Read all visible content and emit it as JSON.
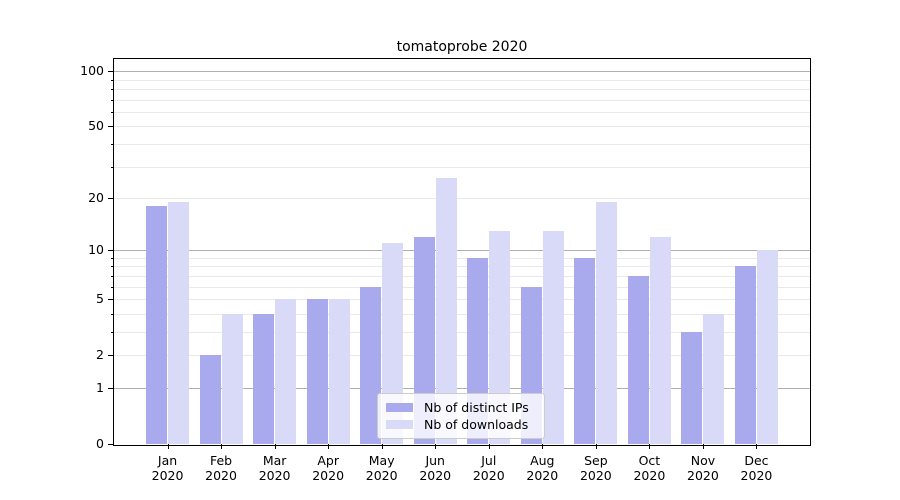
{
  "title": "tomatoprobe 2020",
  "chart_data": {
    "type": "bar",
    "title": "tomatoprobe 2020",
    "categories": [
      "Jan",
      "Feb",
      "Mar",
      "Apr",
      "May",
      "Jun",
      "Jul",
      "Aug",
      "Sep",
      "Oct",
      "Nov",
      "Dec"
    ],
    "category_year": "2020",
    "series": [
      {
        "name": "Nb of distinct IPs",
        "color": "#a9a9ee",
        "values": [
          18,
          2,
          4,
          5,
          6,
          12,
          9,
          6,
          9,
          7,
          3,
          8
        ]
      },
      {
        "name": "Nb of downloads",
        "color": "#d9d9f8",
        "values": [
          19,
          4,
          5,
          5,
          11,
          26,
          13,
          13,
          19,
          12,
          4,
          10
        ]
      }
    ],
    "xlabel": "",
    "ylabel": "",
    "yscale": "log1p",
    "ylim": [
      0,
      116.3
    ],
    "ytick_values": [
      0,
      1,
      2,
      5,
      10,
      20,
      50,
      100
    ],
    "ytick_labels": [
      "0",
      "1",
      "2",
      "5",
      "10",
      "20",
      "50",
      "100"
    ],
    "ytick_major": [
      1,
      10,
      100
    ],
    "ytick_minor": [
      2,
      3,
      4,
      5,
      6,
      7,
      8,
      9,
      20,
      30,
      40,
      50,
      60,
      70,
      80,
      90
    ],
    "grid": true,
    "legend_position": "lower center"
  },
  "colors": {
    "background": "#ffffff",
    "text": "#000000",
    "spine": "#000000",
    "grid_major": "#b0b0b0",
    "grid_minor": "#e9e9e9",
    "legend_border": "#cccccc"
  }
}
